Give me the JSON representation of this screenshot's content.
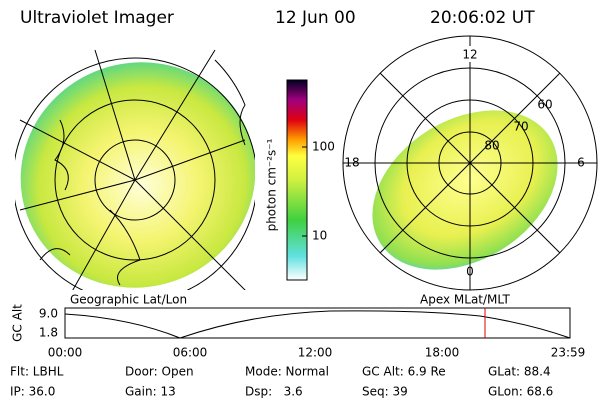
{
  "header": {
    "title": "Ultraviolet Imager",
    "date": "12 Jun 00",
    "time": "20:06:02 UT"
  },
  "colorbar": {
    "label": "photon cm⁻²s⁻¹",
    "ticks": [
      "100",
      "10"
    ]
  },
  "polar_plot": {
    "labels": [
      "12",
      "0",
      "18",
      "6"
    ],
    "rings": [
      "80",
      "70",
      "60"
    ]
  },
  "panel_labels": {
    "left": "Geographic Lat/Lon",
    "right": "Apex MLat/MLT"
  },
  "altitude_plot": {
    "axis_label": "GC Alt",
    "yticks": [
      "9.0",
      "1.8"
    ],
    "xticks": [
      "00:00",
      "06:00",
      "12:00",
      "18:00",
      "23:59"
    ]
  },
  "footer": {
    "rows": [
      [
        "Flt: LBHL",
        "Door: Open",
        "Mode: Normal",
        "GC Alt: 6.9 Re",
        "GLat: 88.4"
      ],
      [
        "IP: 36.0",
        "Gain: 13",
        "Dsp:   3.6",
        "Seq: 39",
        "GLon: 68.6"
      ]
    ]
  }
}
